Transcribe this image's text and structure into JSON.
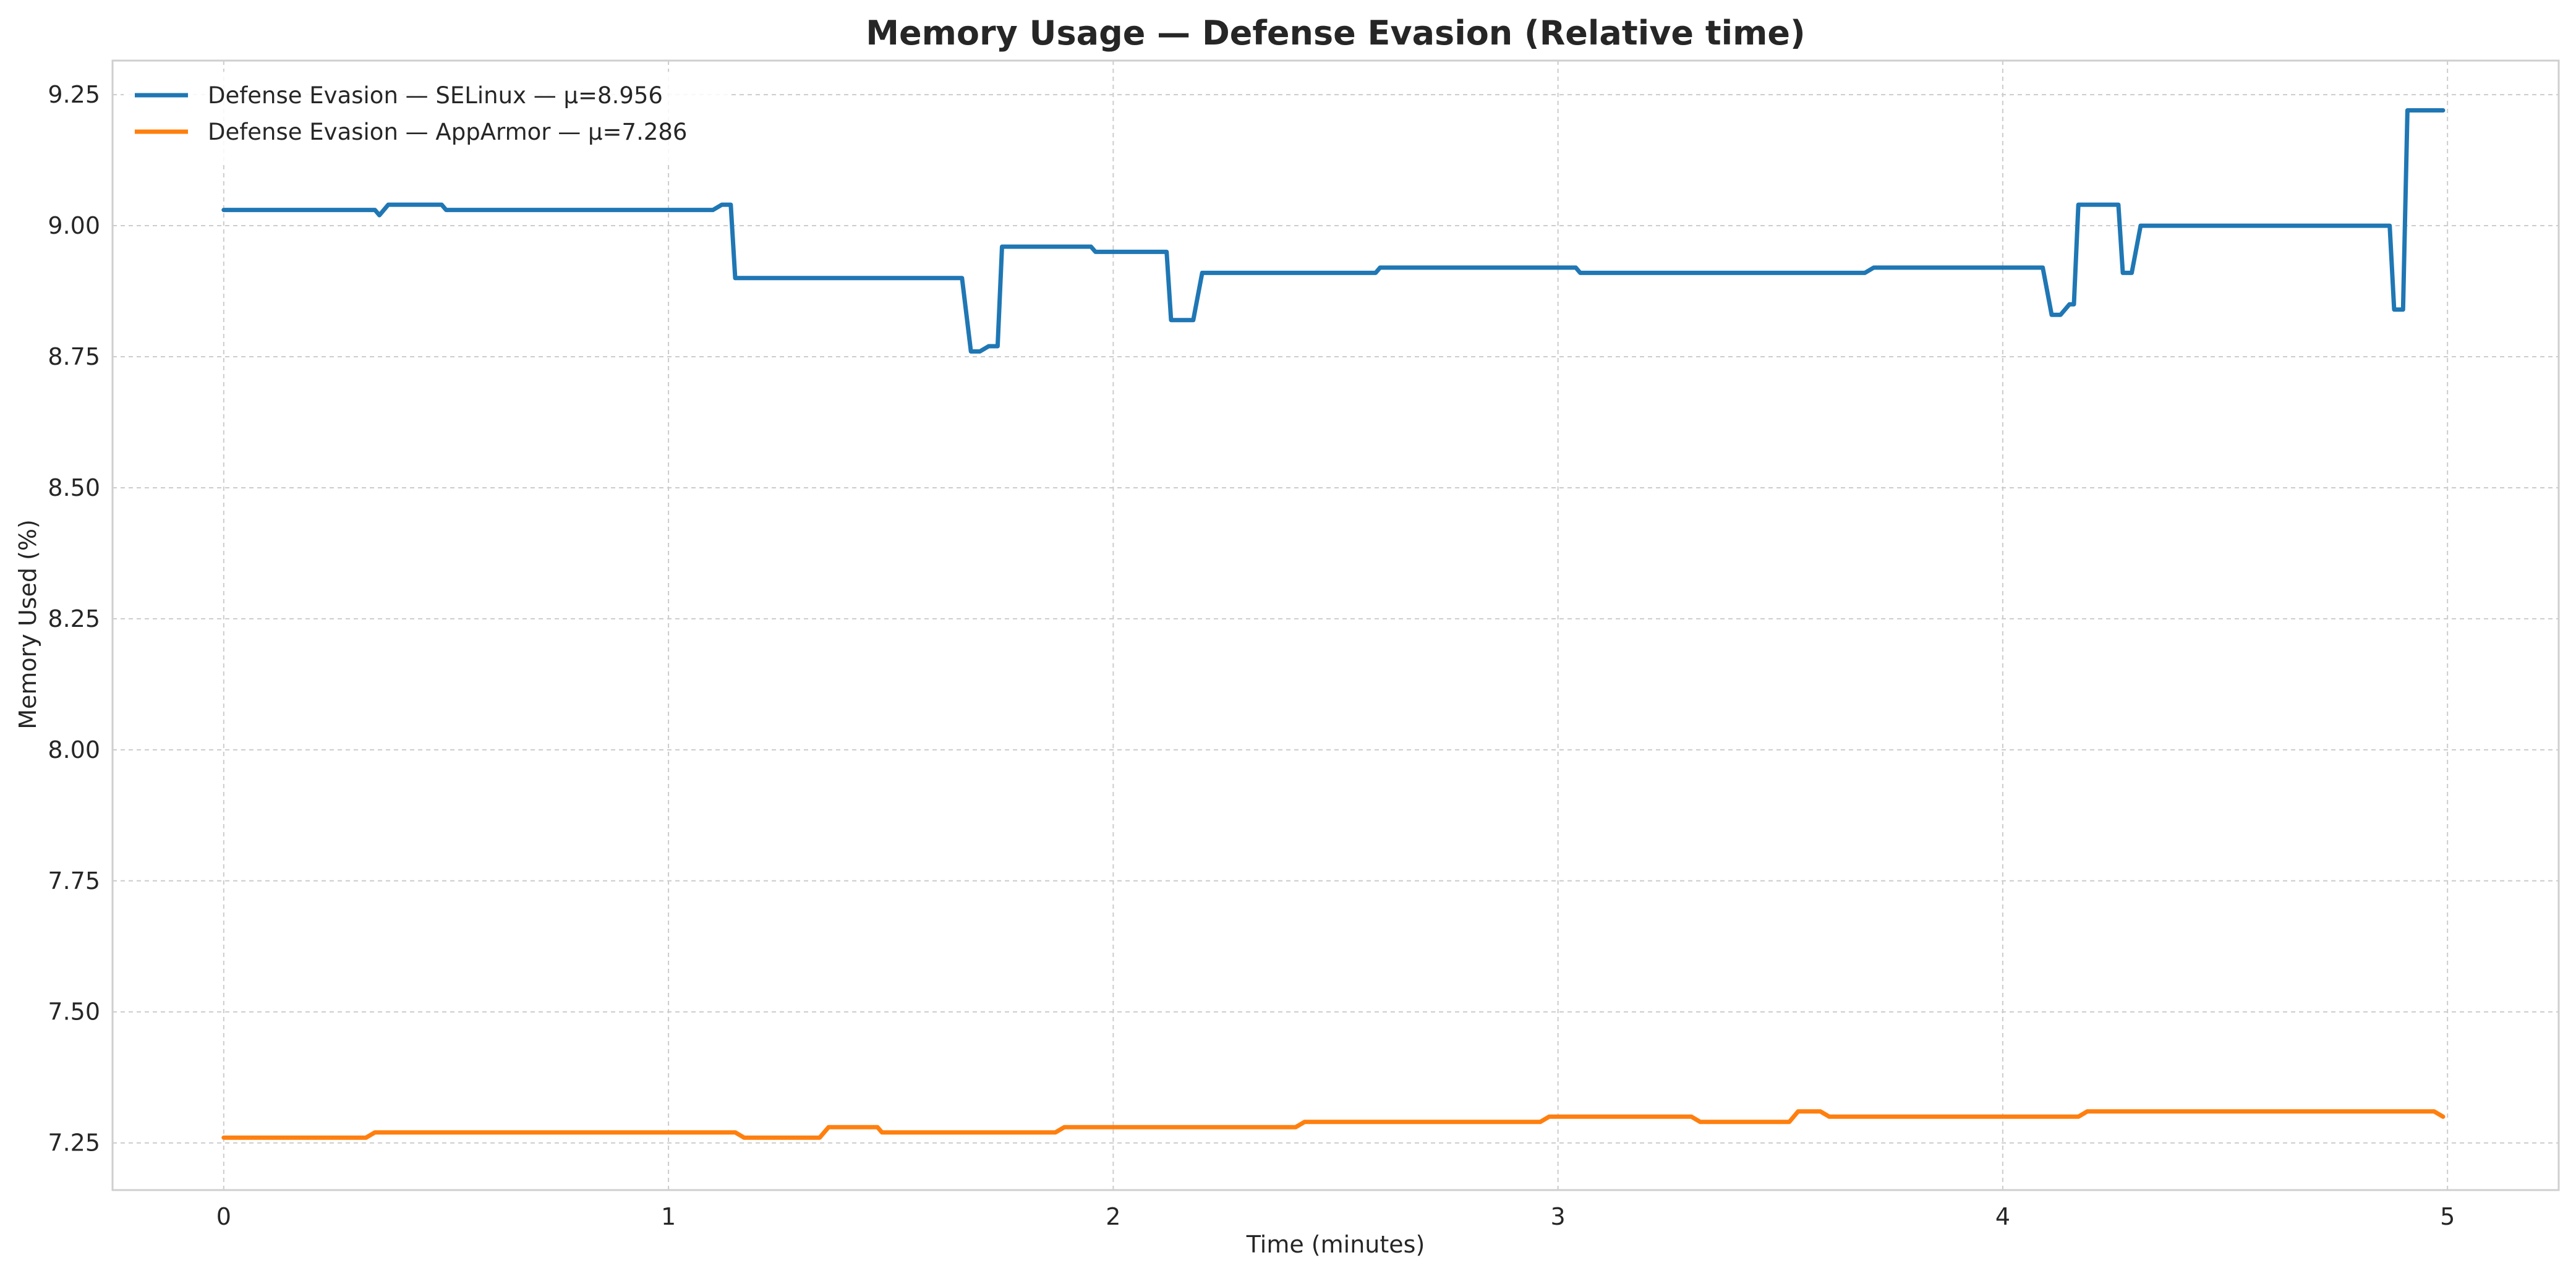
{
  "chart_data": {
    "type": "line",
    "title": "Memory Usage — Defense Evasion (Relative time)",
    "xlabel": "Time (minutes)",
    "ylabel": "Memory Used (%)",
    "xlim": [
      -0.25,
      5.25
    ],
    "ylim": [
      7.16,
      9.315
    ],
    "xticks": [
      0,
      1,
      2,
      3,
      4,
      5
    ],
    "xtick_labels": [
      "0",
      "1",
      "2",
      "3",
      "4",
      "5"
    ],
    "yticks": [
      7.25,
      7.5,
      7.75,
      8.0,
      8.25,
      8.5,
      8.75,
      9.0,
      9.25
    ],
    "ytick_labels": [
      "7.25",
      "7.50",
      "7.75",
      "8.00",
      "8.25",
      "8.50",
      "8.75",
      "9.00",
      "9.25"
    ],
    "grid": true,
    "legend_position": "upper-left",
    "series": [
      {
        "name": "Defense Evasion — SELinux — μ=8.956",
        "color": "#1f77b4",
        "points": [
          [
            0.0,
            9.03
          ],
          [
            0.34,
            9.03
          ],
          [
            0.35,
            9.02
          ],
          [
            0.37,
            9.04
          ],
          [
            0.49,
            9.04
          ],
          [
            0.5,
            9.03
          ],
          [
            1.1,
            9.03
          ],
          [
            1.12,
            9.04
          ],
          [
            1.14,
            9.04
          ],
          [
            1.15,
            8.9
          ],
          [
            1.66,
            8.9
          ],
          [
            1.68,
            8.76
          ],
          [
            1.7,
            8.76
          ],
          [
            1.72,
            8.77
          ],
          [
            1.74,
            8.77
          ],
          [
            1.75,
            8.96
          ],
          [
            1.95,
            8.96
          ],
          [
            1.96,
            8.95
          ],
          [
            2.12,
            8.95
          ],
          [
            2.13,
            8.82
          ],
          [
            2.18,
            8.82
          ],
          [
            2.2,
            8.91
          ],
          [
            2.59,
            8.91
          ],
          [
            2.6,
            8.92
          ],
          [
            3.04,
            8.92
          ],
          [
            3.05,
            8.91
          ],
          [
            3.69,
            8.91
          ],
          [
            3.71,
            8.92
          ],
          [
            4.09,
            8.92
          ],
          [
            4.11,
            8.83
          ],
          [
            4.13,
            8.83
          ],
          [
            4.15,
            8.85
          ],
          [
            4.16,
            8.85
          ],
          [
            4.17,
            9.04
          ],
          [
            4.26,
            9.04
          ],
          [
            4.27,
            8.91
          ],
          [
            4.29,
            8.91
          ],
          [
            4.31,
            9.0
          ],
          [
            4.87,
            9.0
          ],
          [
            4.88,
            8.84
          ],
          [
            4.9,
            8.84
          ],
          [
            4.91,
            9.22
          ],
          [
            4.99,
            9.22
          ]
        ]
      },
      {
        "name": "Defense Evasion — AppArmor — μ=7.286",
        "color": "#ff7f0e",
        "points": [
          [
            0.0,
            7.26
          ],
          [
            0.32,
            7.26
          ],
          [
            0.34,
            7.27
          ],
          [
            1.15,
            7.27
          ],
          [
            1.17,
            7.26
          ],
          [
            1.34,
            7.26
          ],
          [
            1.36,
            7.28
          ],
          [
            1.47,
            7.28
          ],
          [
            1.48,
            7.27
          ],
          [
            1.87,
            7.27
          ],
          [
            1.89,
            7.28
          ],
          [
            2.41,
            7.28
          ],
          [
            2.43,
            7.29
          ],
          [
            2.96,
            7.29
          ],
          [
            2.98,
            7.3
          ],
          [
            3.3,
            7.3
          ],
          [
            3.32,
            7.29
          ],
          [
            3.52,
            7.29
          ],
          [
            3.54,
            7.31
          ],
          [
            3.59,
            7.31
          ],
          [
            3.61,
            7.3
          ],
          [
            4.17,
            7.3
          ],
          [
            4.19,
            7.31
          ],
          [
            4.97,
            7.31
          ],
          [
            4.99,
            7.3
          ]
        ]
      }
    ]
  }
}
